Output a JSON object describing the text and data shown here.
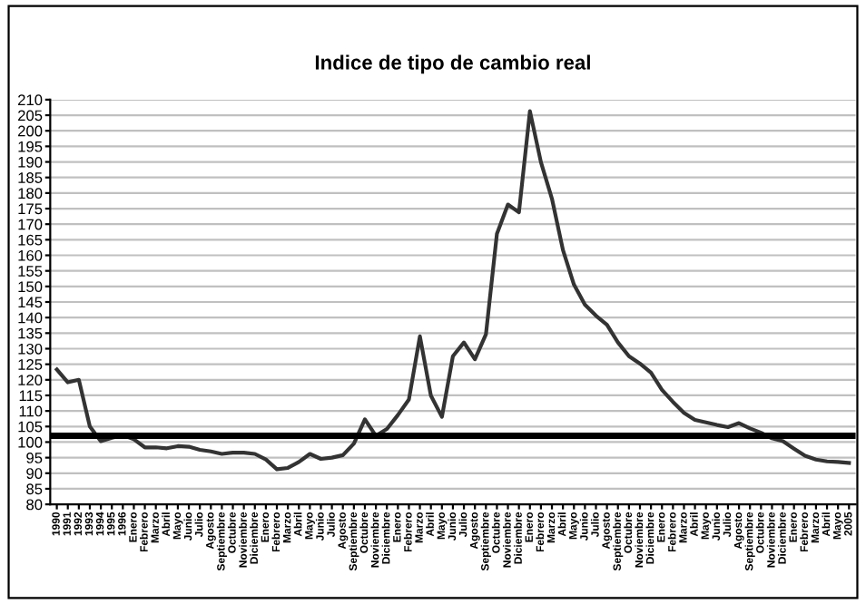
{
  "chart_data": {
    "type": "line",
    "title": "Indice de tipo de cambio real",
    "categories": [
      "1990",
      "1991",
      "1992",
      "1993",
      "1994",
      "1995",
      "1996",
      "Enero",
      "Febrero",
      "Marzo",
      "Abril",
      "Mayo",
      "Junio",
      "Julio",
      "Agosto",
      "Septiembre",
      "Octubre",
      "Noviembre",
      "Diciembre",
      "Enero",
      "Febrero",
      "Marzo",
      "Abril",
      "Mayo",
      "Junio",
      "Julio",
      "Agosto",
      "Septiembre",
      "Octubre",
      "Noviembre",
      "Diciembre",
      "Enero",
      "Febrero",
      "Marzo",
      "Abril",
      "Mayo",
      "Junio",
      "Julio",
      "Agosto",
      "Septiembre",
      "Octubre",
      "Noviembre",
      "Diciembre",
      "Enero",
      "Febrero",
      "Marzo",
      "Abril",
      "Mayo",
      "Junio",
      "Julio",
      "Agosto",
      "Septiembre",
      "Octubre",
      "Noviembre",
      "Diciembre",
      "Enero",
      "Febrero",
      "Marzo",
      "Abril",
      "Mayo",
      "Junio",
      "Julio",
      "Agosto",
      "Septiembre",
      "Octubre",
      "Noviembre",
      "Diciembre",
      "Enero",
      "Febrero",
      "Marzo",
      "Abril",
      "Mayo",
      "2005"
    ],
    "series": [
      {
        "color": "#333333",
        "values": [
          123.3,
          119.2,
          120,
          105,
          100.3,
          101.4,
          102.2,
          100.9,
          98.3,
          98.3,
          98,
          98.7,
          98.5,
          97.5,
          97,
          96.2,
          96.6,
          96.6,
          96.2,
          94.4,
          91.3,
          91.7,
          93.6,
          96.2,
          94.6,
          95,
          95.8,
          99.5,
          107.3,
          102,
          104.2,
          108.7,
          113.7,
          134,
          114.9,
          108.1,
          127.6,
          132,
          126.6,
          134.6,
          166.9,
          176.3,
          173.8,
          206.3,
          189.9,
          178.2,
          161.7,
          150.6,
          144.1,
          140.6,
          137.7,
          132,
          127.6,
          125.2,
          122.3,
          116.8,
          112.9,
          109.4,
          107.1,
          106.3,
          105.5,
          104.8,
          106.1,
          104.4,
          103,
          101.2,
          100.3,
          97.9,
          95.6,
          94.4,
          93.8,
          93.6,
          93.3
        ]
      }
    ],
    "ref_lines": [
      {
        "axis": "y",
        "value": 102,
        "color": "#000000",
        "line_style": "solid"
      }
    ],
    "ylim": [
      80,
      210
    ],
    "yticks": [
      80,
      85,
      90,
      95,
      100,
      105,
      110,
      115,
      120,
      125,
      130,
      135,
      140,
      145,
      150,
      155,
      160,
      165,
      170,
      175,
      180,
      185,
      190,
      195,
      200,
      205,
      210
    ],
    "grid": "y",
    "legend": false,
    "marker": "none",
    "line_style": "solid"
  }
}
